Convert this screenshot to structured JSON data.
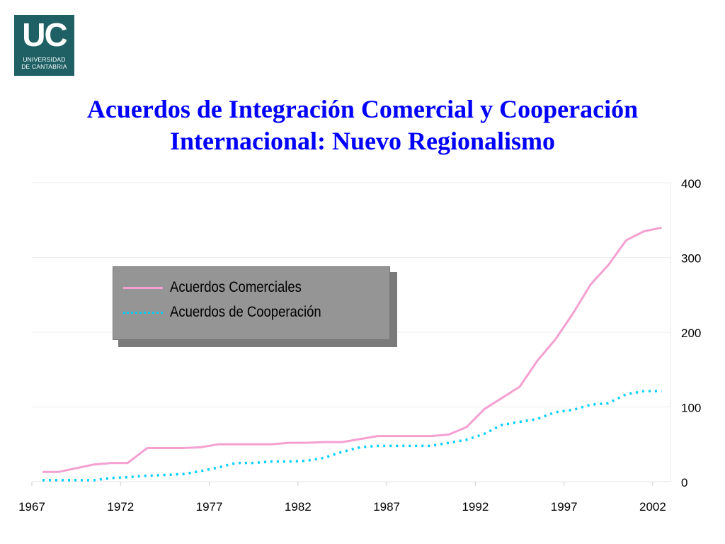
{
  "logo": {
    "mark": "UC",
    "text_line1": "UNIVERSIDAD",
    "text_line2": "DE CANTABRIA"
  },
  "colors": {
    "title": "#0000ff",
    "series_comerciales": "#f4a0d0",
    "series_cooperacion": "#00cfff",
    "logo_bg": "#1e6064",
    "legend_bg": "#959595"
  },
  "chart_data": {
    "type": "line",
    "title": "Acuerdos de Integración Comercial y Cooperación Internacional: Nuevo Regionalismo",
    "xlabel": "",
    "ylabel": "",
    "xlim": [
      1967,
      2003
    ],
    "ylim": [
      0,
      400
    ],
    "x_ticks": [
      "1967",
      "1972",
      "1977",
      "1982",
      "1987",
      "1992",
      "1997",
      "2002"
    ],
    "y_ticks": [
      "0",
      "100",
      "200",
      "300",
      "400"
    ],
    "y_axis_side": "right",
    "grid": true,
    "legend_position": "upper-left",
    "series": [
      {
        "name": "Acuerdos Comerciales",
        "style": "solid",
        "color": "#f4a0d0",
        "x": [
          1967.6,
          1968.5,
          1969.5,
          1970.5,
          1971.5,
          1972.4,
          1973.5,
          1974.5,
          1975.5,
          1976.5,
          1977.5,
          1978.5,
          1979.5,
          1980.5,
          1981.5,
          1982.5,
          1983.5,
          1984.5,
          1985.5,
          1986.5,
          1987.5,
          1988.5,
          1989.5,
          1990.5,
          1991.5,
          1992.5,
          1993.5,
          1994.5,
          1995.5,
          1996.5,
          1997.5,
          1998.5,
          1999.5,
          2000.5,
          2001.5,
          2002.5
        ],
        "values": [
          13,
          13,
          18,
          23,
          25,
          25,
          45,
          45,
          45,
          46,
          50,
          50,
          50,
          50,
          52,
          52,
          53,
          53,
          57,
          61,
          61,
          61,
          61,
          63,
          73,
          97,
          112,
          127,
          162,
          190,
          225,
          264,
          290,
          323,
          335,
          340
        ]
      },
      {
        "name": "Acuerdos de Cooperación",
        "style": "dotted",
        "color": "#00cfff",
        "x": [
          1967.6,
          1968.5,
          1969.5,
          1970.5,
          1971.5,
          1972.4,
          1973.5,
          1974.5,
          1975.5,
          1976.5,
          1977.5,
          1978.5,
          1979.5,
          1980.5,
          1981.5,
          1982.5,
          1983.5,
          1984.5,
          1985.5,
          1986.5,
          1987.5,
          1988.5,
          1989.5,
          1990.5,
          1991.5,
          1992.5,
          1993.5,
          1994.5,
          1995.5,
          1996.5,
          1997.5,
          1998.5,
          1999.5,
          2000.5,
          2001.5,
          2002.5
        ],
        "values": [
          2,
          2,
          2,
          2,
          5,
          6,
          8,
          9,
          10,
          14,
          19,
          25,
          25,
          27,
          27,
          28,
          32,
          40,
          46,
          48,
          48,
          48,
          48,
          52,
          56,
          64,
          76,
          80,
          84,
          93,
          96,
          103,
          105,
          117,
          121,
          121
        ]
      }
    ]
  }
}
